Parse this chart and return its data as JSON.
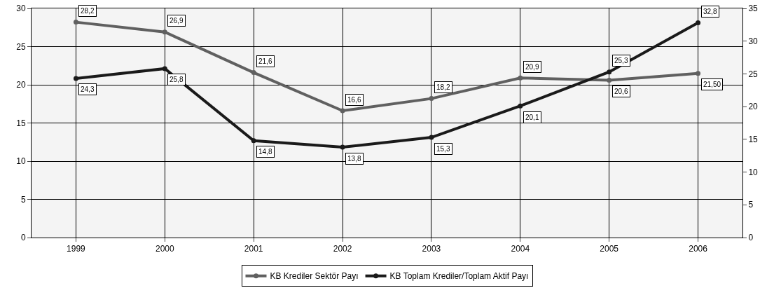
{
  "chart_data": {
    "type": "line",
    "categories": [
      "1999",
      "2000",
      "2001",
      "2002",
      "2003",
      "2004",
      "2005",
      "2006"
    ],
    "series": [
      {
        "name": "KB Krediler Sektör Payı",
        "color": "#606060",
        "values": [
          28.2,
          26.9,
          21.6,
          16.6,
          18.2,
          20.9,
          20.6,
          21.5
        ],
        "value_labels": [
          "28,2",
          "26,9",
          "21,6",
          "16,6",
          "18,2",
          "20,9",
          "20,6",
          "21,50"
        ]
      },
      {
        "name": "KB Toplam Krediler/Toplam Aktif Payı",
        "color": "#1a1a1a",
        "axis": "y2",
        "values": [
          24.3,
          25.8,
          14.8,
          13.8,
          15.3,
          20.1,
          25.3,
          32.8
        ],
        "value_labels": [
          "24,3",
          "25,8",
          "14,8",
          "13,8",
          "15,3",
          "20,1",
          "25,3",
          "32,8"
        ]
      }
    ],
    "ylim": [
      0,
      30
    ],
    "yticks": [
      0,
      5,
      10,
      15,
      20,
      25,
      30
    ],
    "y2lim": [
      0,
      35
    ],
    "y2ticks": [
      0,
      5,
      10,
      15,
      20,
      25,
      30,
      35
    ],
    "grid": true,
    "legend": "bottom",
    "marker": "circle",
    "line_style": "solid"
  }
}
